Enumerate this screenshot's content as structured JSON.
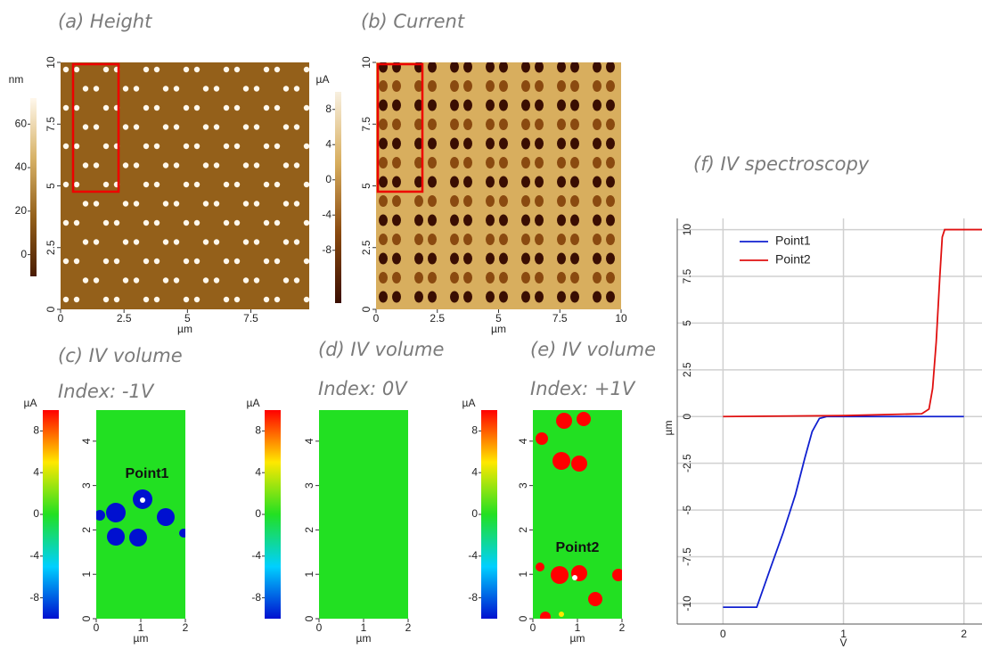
{
  "chart_data": [
    {
      "type": "map",
      "title": "(a) Height",
      "xlabel": "µm",
      "xlim": [
        0,
        9.8
      ],
      "ylim": [
        0,
        10
      ],
      "xticks": [
        0,
        2.5,
        5,
        7.5
      ],
      "yticks": [
        0,
        2.5,
        5,
        7.5,
        10
      ],
      "clabel": "nm",
      "clim": [
        -10,
        72
      ],
      "cticks": [
        0,
        20,
        40,
        60
      ],
      "colormap": [
        "#4a1c02",
        "#94601a",
        "#d8b368",
        "#fff8ec"
      ]
    },
    {
      "type": "map",
      "title": "(b) Current",
      "xlabel": "µm",
      "xlim": [
        0,
        10
      ],
      "ylim": [
        0,
        10
      ],
      "xticks": [
        0,
        2.5,
        5,
        7.5,
        10
      ],
      "yticks": [
        0,
        2.5,
        5,
        7.5,
        10
      ],
      "clabel": "µA",
      "clim": [
        -14,
        10
      ],
      "cticks": [
        -8,
        -4,
        0,
        4,
        8
      ],
      "colormap": [
        "#3a0e02",
        "#8a4a10",
        "#d8ae5e",
        "#f8f0e0"
      ]
    },
    {
      "type": "map",
      "title": "(c) IV volume",
      "subtitle": "Index: -1V",
      "annotation": "Point1",
      "xlabel": "µm",
      "xlim": [
        0,
        2
      ],
      "ylim": [
        0,
        4.7
      ],
      "xticks": [
        0,
        1,
        2
      ],
      "yticks": [
        0,
        1,
        2,
        3,
        4
      ],
      "clabel": "µA",
      "clim": [
        -10,
        10
      ],
      "cticks": [
        -8,
        -4,
        0,
        4,
        8
      ],
      "colormap": [
        "#0010d0",
        "#00d0ff",
        "#22e022",
        "#ffe800",
        "#ff0000"
      ]
    },
    {
      "type": "map",
      "title": "(d) IV volume",
      "subtitle": "Index: 0V",
      "xlabel": "µm",
      "xlim": [
        0,
        2
      ],
      "ylim": [
        0,
        4.7
      ],
      "xticks": [
        0,
        1,
        2
      ],
      "yticks": [
        0,
        1,
        2,
        3,
        4
      ],
      "clabel": "µA",
      "clim": [
        -10,
        10
      ],
      "cticks": [
        -8,
        -4,
        0,
        4,
        8
      ],
      "colormap": [
        "#0010d0",
        "#00d0ff",
        "#22e022",
        "#ffe800",
        "#ff0000"
      ]
    },
    {
      "type": "map",
      "title": "(e) IV volume",
      "subtitle": "Index: +1V",
      "annotation": "Point2",
      "xlabel": "µm",
      "xlim": [
        0,
        2
      ],
      "ylim": [
        0,
        4.7
      ],
      "xticks": [
        0,
        1,
        2
      ],
      "yticks": [
        0,
        1,
        2,
        3,
        4
      ],
      "clabel": "µA",
      "clim": [
        -10,
        10
      ],
      "cticks": [
        -8,
        -4,
        0,
        4,
        8
      ],
      "colormap": [
        "#0010d0",
        "#00d0ff",
        "#22e022",
        "#ffe800",
        "#ff0000"
      ]
    },
    {
      "type": "line",
      "title": "(f) IV spectroscopy",
      "xlabel": "V",
      "ylabel": "µm",
      "xlim": [
        -0.38,
        2.15
      ],
      "ylim": [
        -11.1,
        10.6
      ],
      "xticks": [
        0,
        1,
        2
      ],
      "yticks": [
        -10,
        -7.5,
        -5,
        -2.5,
        0,
        2.5,
        5,
        7.5,
        10
      ],
      "grid": true,
      "legend": "upper left",
      "series": [
        {
          "name": "Point1",
          "color": "#1020d0",
          "x": [
            0,
            0.28,
            0.4,
            0.5,
            0.6,
            0.68,
            0.74,
            0.8,
            0.86,
            1,
            1.5,
            2
          ],
          "values": [
            -10.2,
            -10.2,
            -8,
            -6.2,
            -4.2,
            -2.2,
            -0.8,
            -0.1,
            0,
            0,
            0,
            0
          ]
        },
        {
          "name": "Point2",
          "color": "#e01010",
          "x": [
            0,
            1,
            1.65,
            1.71,
            1.74,
            1.77,
            1.8,
            1.82,
            1.84,
            2.15
          ],
          "values": [
            0,
            0.05,
            0.15,
            0.4,
            1.5,
            4,
            7.5,
            9.6,
            10,
            10
          ]
        }
      ]
    }
  ]
}
